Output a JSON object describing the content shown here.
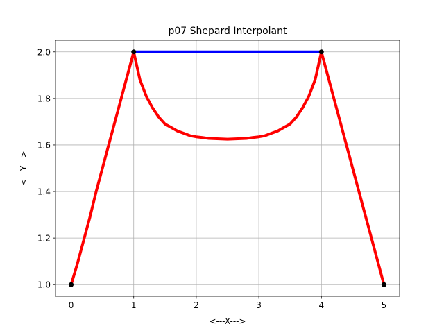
{
  "chart_data": {
    "type": "line",
    "title": "p07 Shepard Interpolant",
    "xlabel": "<---X--->",
    "ylabel": "<---Y--->",
    "xlim": [
      -0.25,
      5.25
    ],
    "ylim": [
      0.95,
      2.05
    ],
    "xticks": [
      0,
      1,
      2,
      3,
      4,
      5
    ],
    "yticks": [
      1.0,
      1.2,
      1.4,
      1.6,
      1.8,
      2.0
    ],
    "xtick_labels": [
      "0",
      "1",
      "2",
      "3",
      "4",
      "5"
    ],
    "ytick_labels": [
      "1.0",
      "1.2",
      "1.4",
      "1.6",
      "1.8",
      "2.0"
    ],
    "grid": true,
    "series": [
      {
        "role": "data-polyline",
        "color": "#0000ff",
        "x": [
          0,
          1,
          4,
          5
        ],
        "y": [
          1.0,
          2.0,
          2.0,
          1.0
        ]
      },
      {
        "role": "shepard-interpolant",
        "color": "#ff0000",
        "x": [
          0,
          0.1,
          0.2,
          0.3,
          0.4,
          0.5,
          0.6,
          0.7,
          0.8,
          0.9,
          1.0,
          1.05,
          1.1,
          1.2,
          1.3,
          1.4,
          1.5,
          1.6,
          1.7,
          1.8,
          1.9,
          2.0,
          2.1,
          2.2,
          2.3,
          2.4,
          2.5,
          2.6,
          2.7,
          2.8,
          2.9,
          3.0,
          3.1,
          3.2,
          3.3,
          3.4,
          3.5,
          3.6,
          3.7,
          3.8,
          3.9,
          3.95,
          4.0,
          4.1,
          4.2,
          4.3,
          4.4,
          4.5,
          4.6,
          4.7,
          4.8,
          4.9,
          5.0
        ],
        "y": [
          1.0,
          1.09,
          1.19,
          1.29,
          1.4,
          1.5,
          1.6,
          1.7,
          1.8,
          1.9,
          2.0,
          1.94,
          1.88,
          1.81,
          1.76,
          1.72,
          1.69,
          1.675,
          1.66,
          1.65,
          1.64,
          1.635,
          1.632,
          1.628,
          1.627,
          1.626,
          1.625,
          1.626,
          1.627,
          1.628,
          1.632,
          1.635,
          1.64,
          1.65,
          1.66,
          1.675,
          1.69,
          1.72,
          1.76,
          1.81,
          1.88,
          1.94,
          2.0,
          1.9,
          1.8,
          1.7,
          1.6,
          1.5,
          1.4,
          1.3,
          1.2,
          1.1,
          1.0
        ]
      }
    ],
    "markers": {
      "color": "#000000",
      "x": [
        0,
        1,
        4,
        5
      ],
      "y": [
        1.0,
        2.0,
        2.0,
        1.0
      ]
    }
  }
}
